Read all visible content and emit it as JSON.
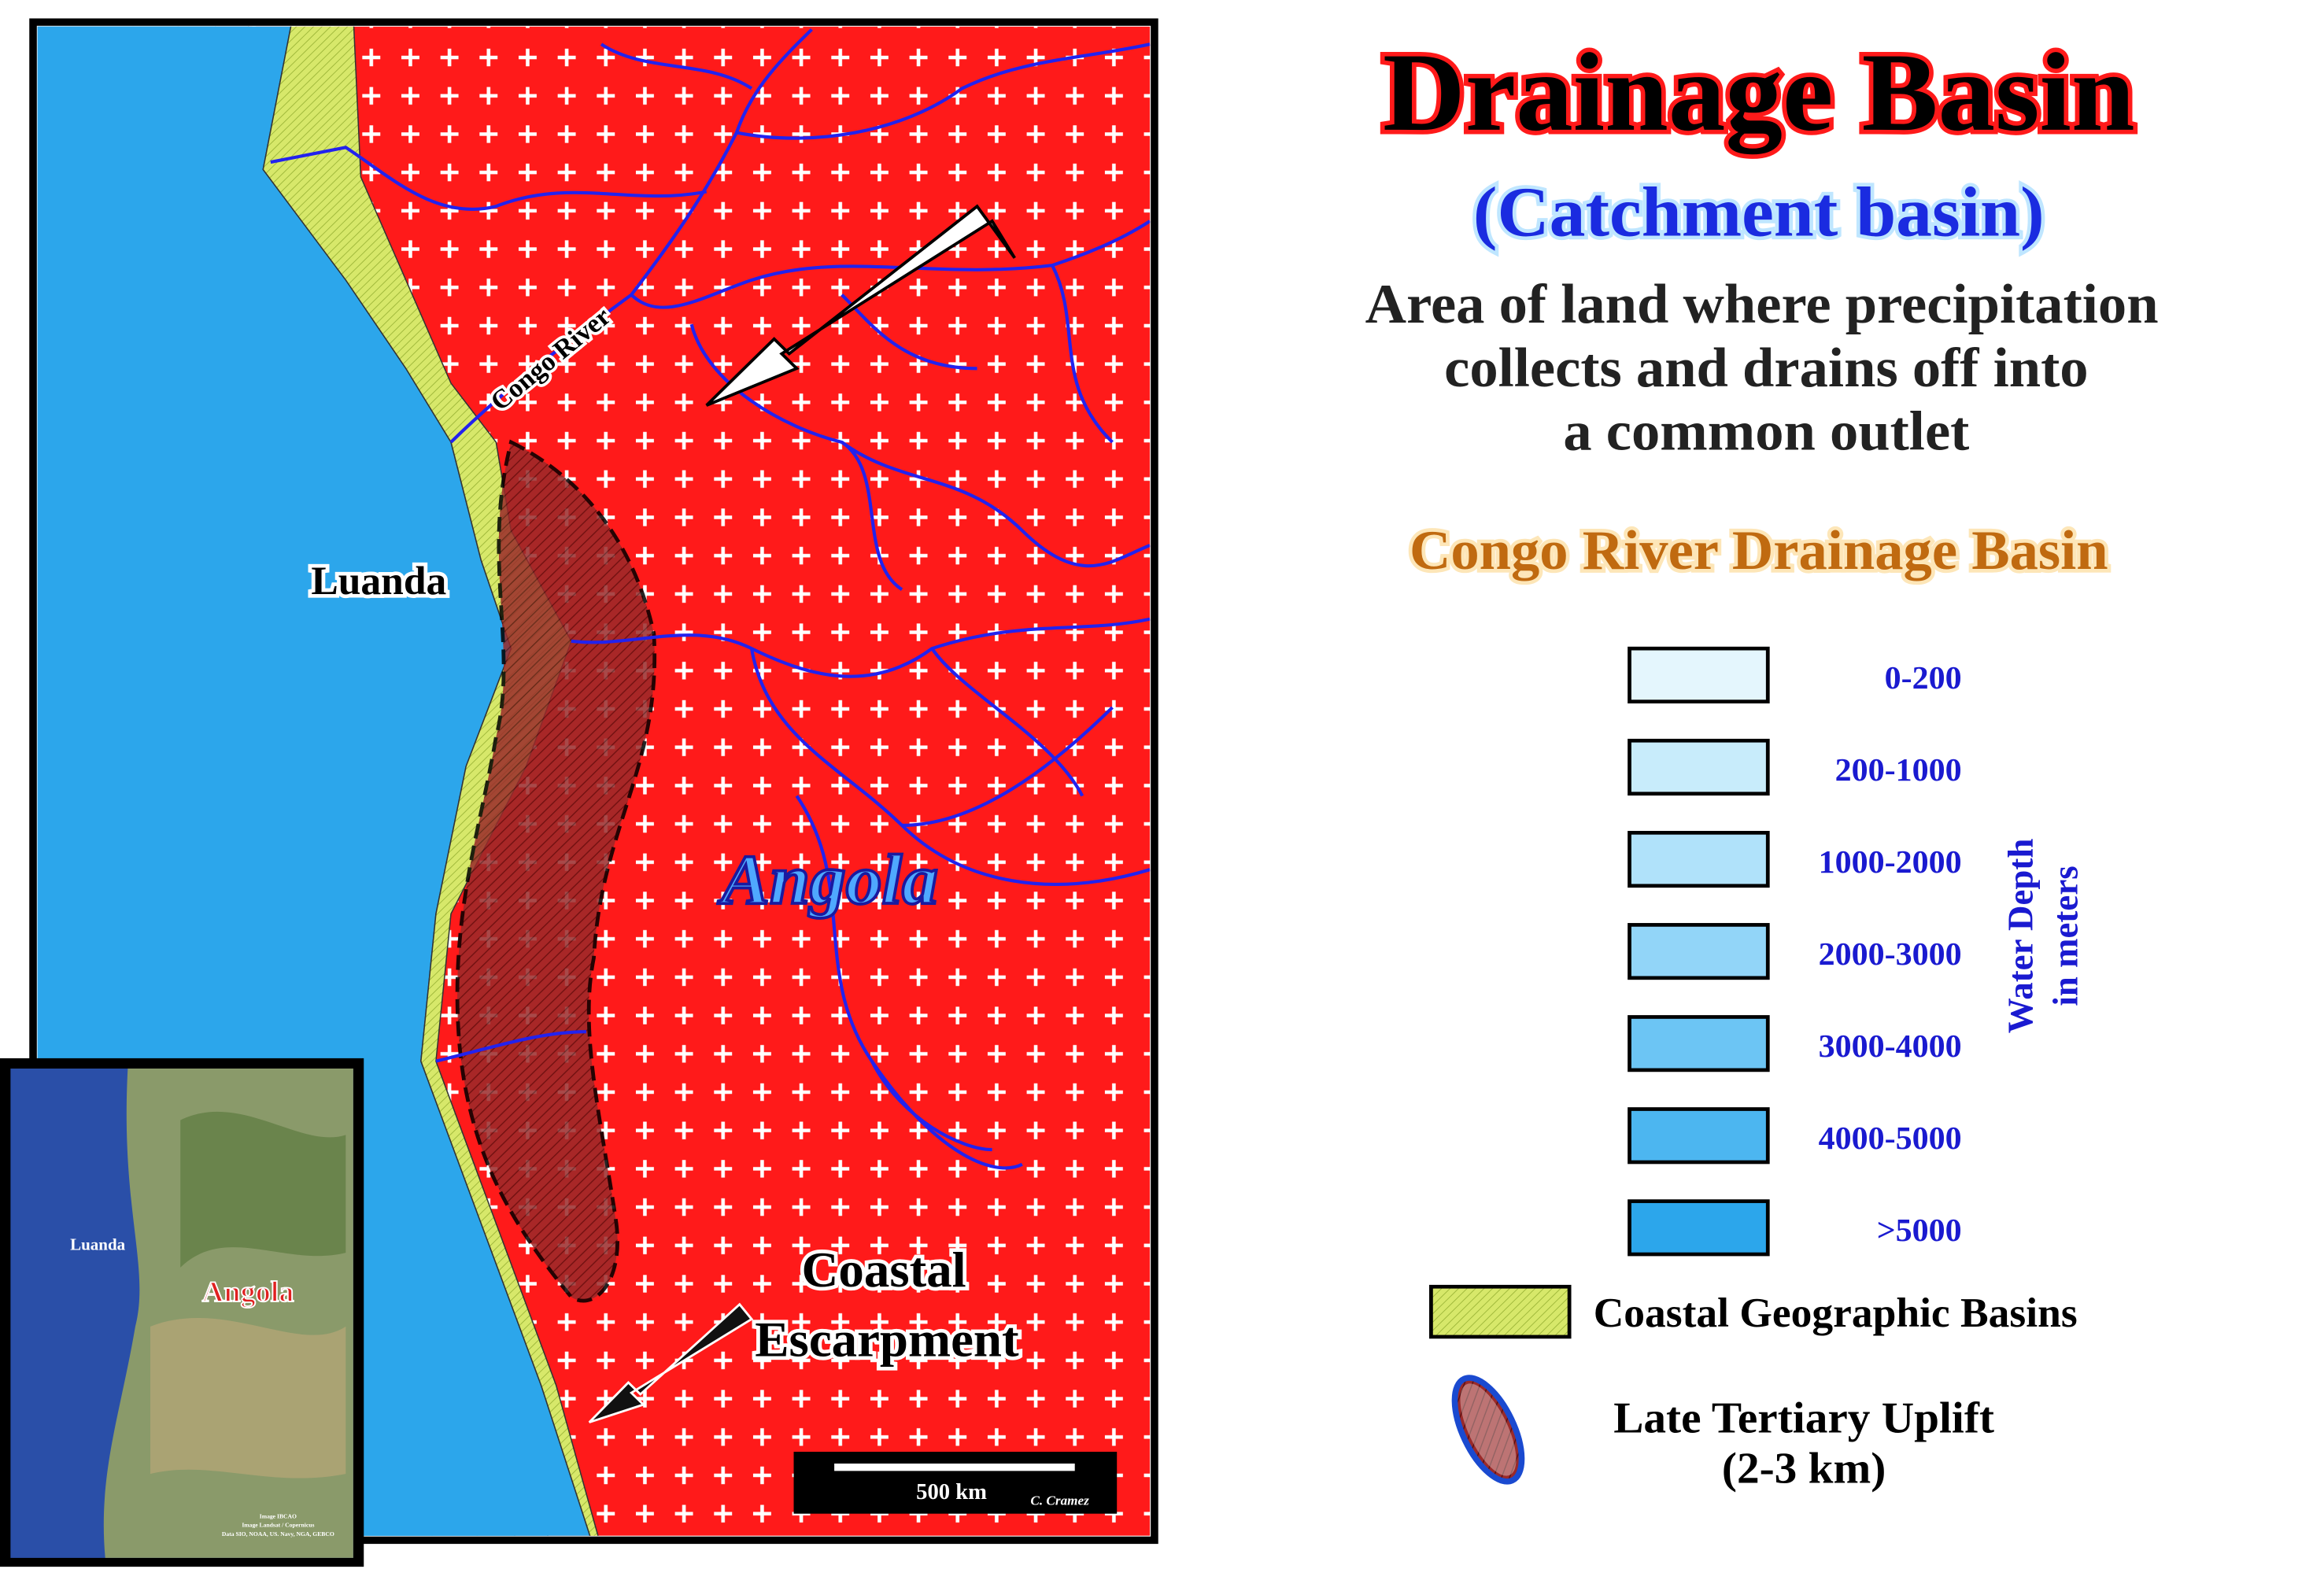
{
  "header": {
    "title": "Drainage Basin",
    "subtitle": "(Catchment basin)",
    "description": [
      "Area of land where precipitation",
      "collects and drains off into",
      "a common outlet"
    ],
    "basin_name": "Congo River Drainage Basin"
  },
  "map": {
    "river_label": "Congo River",
    "city_label": "Luanda",
    "country_label": "Angola",
    "escarpment_label": [
      "Coastal",
      "Escarpment"
    ],
    "scale_label": "500 km",
    "author": "C. Cramez"
  },
  "inset": {
    "city_label": "Luanda",
    "country_label": "Angola",
    "credits": [
      "Image IBCAO",
      "Image Landsat / Copernicus",
      "Data SIO, NOAA, US. Navy, NGA, GEBCO"
    ]
  },
  "legend": {
    "depth_items": [
      "0-200",
      "200-1000",
      "1000-2000",
      "2000-3000",
      "3000-4000",
      "4000-5000",
      ">5000"
    ],
    "depth_title": [
      "Water Depth",
      "in meters"
    ],
    "coastal": "Coastal Geographic Basins",
    "uplift": [
      "Late Tertiary Uplift",
      "(2-3 km)"
    ]
  }
}
